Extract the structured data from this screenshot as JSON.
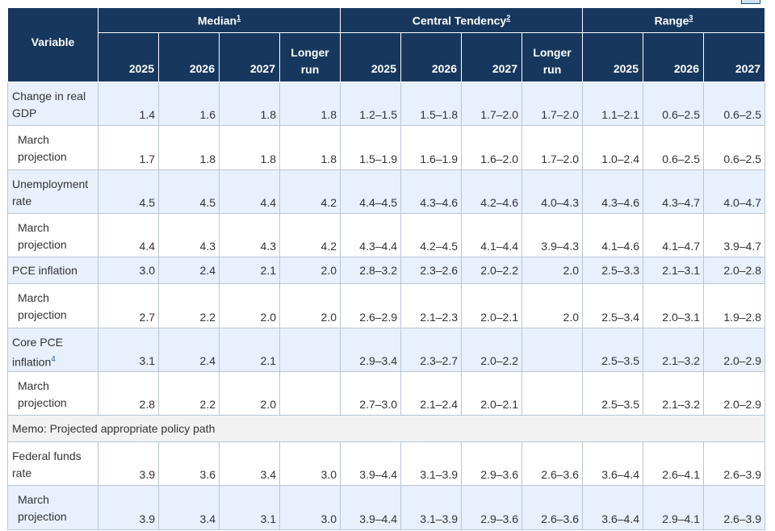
{
  "header": {
    "variable": "Variable",
    "groups": [
      {
        "label": "Median",
        "note": "1"
      },
      {
        "label": "Central Tendency",
        "note": "2"
      },
      {
        "label": "Range",
        "note": "3"
      }
    ],
    "cols": [
      "2025",
      "2026",
      "2027",
      "Longer",
      "run",
      "2025",
      "2026",
      "2027",
      "Longer",
      "run",
      "2025",
      "2026",
      "2027"
    ]
  },
  "rows": [
    {
      "label": [
        "Change in real",
        "GDP"
      ],
      "values": [
        "1.4",
        "1.6",
        "1.8",
        "1.8",
        "1.2–1.5",
        "1.5–1.8",
        "1.7–2.0",
        "1.7–2.0",
        "1.1–2.1",
        "0.6–2.5",
        "0.6–2.5"
      ]
    },
    {
      "label": [
        "March",
        "projection"
      ],
      "values": [
        "1.7",
        "1.8",
        "1.8",
        "1.8",
        "1.5–1.9",
        "1.6–1.9",
        "1.6–2.0",
        "1.7–2.0",
        "1.0–2.4",
        "0.6–2.5",
        "0.6–2.5"
      ]
    },
    {
      "label": [
        "Unemployment",
        "rate"
      ],
      "values": [
        "4.5",
        "4.5",
        "4.4",
        "4.2",
        "4.4–4.5",
        "4.3–4.6",
        "4.2–4.6",
        "4.0–4.3",
        "4.3–4.6",
        "4.3–4.7",
        "4.0–4.7"
      ]
    },
    {
      "label": [
        "March",
        "projection"
      ],
      "values": [
        "4.4",
        "4.3",
        "4.3",
        "4.2",
        "4.3–4.4",
        "4.2–4.5",
        "4.1–4.4",
        "3.9–4.3",
        "4.1–4.6",
        "4.1–4.7",
        "3.9–4.7"
      ]
    },
    {
      "label": [
        "PCE inflation"
      ],
      "values": [
        "3.0",
        "2.4",
        "2.1",
        "2.0",
        "2.8–3.2",
        "2.3–2.6",
        "2.0–2.2",
        "2.0",
        "2.5–3.3",
        "2.1–3.1",
        "2.0–2.8"
      ]
    },
    {
      "label": [
        "March",
        "projection"
      ],
      "values": [
        "2.7",
        "2.2",
        "2.0",
        "2.0",
        "2.6–2.9",
        "2.1–2.3",
        "2.0–2.1",
        "2.0",
        "2.5–3.4",
        "2.0–3.1",
        "1.9–2.8"
      ]
    },
    {
      "label": [
        "Core PCE",
        "inflation"
      ],
      "note": "4",
      "values": [
        "3.1",
        "2.4",
        "2.1",
        "",
        "2.9–3.4",
        "2.3–2.7",
        "2.0–2.2",
        "",
        "2.5–3.5",
        "2.1–3.2",
        "2.0–2.9"
      ]
    },
    {
      "label": [
        "March",
        "projection"
      ],
      "values": [
        "2.8",
        "2.2",
        "2.0",
        "",
        "2.7–3.0",
        "2.1–2.4",
        "2.0–2.1",
        "",
        "2.5–3.5",
        "2.1–3.2",
        "2.0–2.9"
      ]
    },
    {
      "memo": "Memo: Projected appropriate policy path"
    },
    {
      "label": [
        "Federal funds",
        "rate"
      ],
      "values": [
        "3.9",
        "3.6",
        "3.4",
        "3.0",
        "3.9–4.4",
        "3.1–3.9",
        "2.9–3.6",
        "2.6–3.6",
        "3.6–4.4",
        "2.6–4.1",
        "2.6–3.9"
      ]
    },
    {
      "label": [
        "March",
        "projection"
      ],
      "values": [
        "3.9",
        "3.4",
        "3.1",
        "3.0",
        "3.9–4.4",
        "3.1–3.9",
        "2.9–3.6",
        "2.6–3.6",
        "3.6–4.4",
        "2.9–4.1",
        "2.6–3.9"
      ]
    }
  ]
}
